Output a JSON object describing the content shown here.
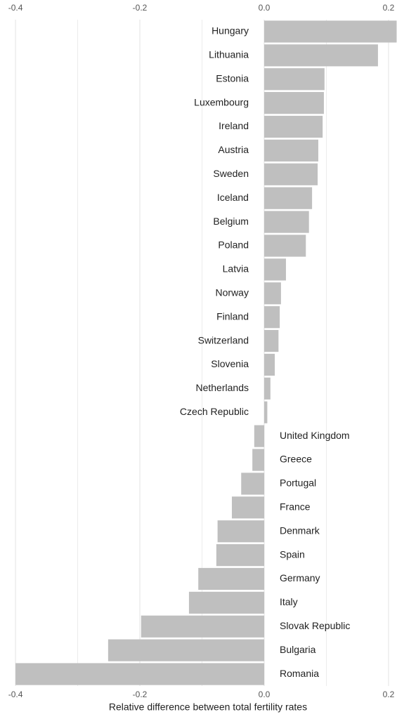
{
  "chart_data": {
    "type": "hbar",
    "xlabel": "Relative difference between total fertility rates",
    "categories": [
      "Hungary",
      "Lithuania",
      "Estonia",
      "Luxembourg",
      "Ireland",
      "Austria",
      "Sweden",
      "Iceland",
      "Belgium",
      "Poland",
      "Latvia",
      "Norway",
      "Finland",
      "Switzerland",
      "Slovenia",
      "Netherlands",
      "Czech Republic",
      "United Kingdom",
      "Greece",
      "Portugal",
      "France",
      "Denmark",
      "Spain",
      "Germany",
      "Italy",
      "Slovak Republic",
      "Bulgaria",
      "Romania"
    ],
    "values": [
      0.213,
      0.183,
      0.097,
      0.096,
      0.094,
      0.087,
      0.086,
      0.077,
      0.072,
      0.067,
      0.035,
      0.027,
      0.025,
      0.023,
      0.017,
      0.01,
      0.005,
      -0.016,
      -0.019,
      -0.037,
      -0.052,
      -0.075,
      -0.077,
      -0.106,
      -0.121,
      -0.198,
      -0.251,
      -0.4
    ],
    "color": "#bfbfbf",
    "xlim": [
      -0.41,
      0.2136
    ],
    "xticks": [
      -0.4,
      -0.2,
      {
        "value": 0,
        "label": "0.0"
      },
      0.2
    ],
    "minor_grid": [
      -0.3,
      -0.1,
      0.1
    ],
    "grid": true
  }
}
